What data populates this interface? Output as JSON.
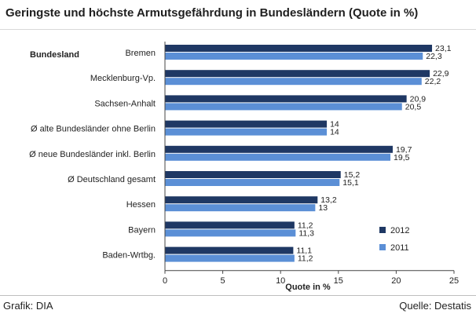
{
  "title": "Geringste und höchste Armutsgefährdung in Bundesländern (Quote in %)",
  "footer": {
    "source_left": "Grafik: DIA",
    "source_right": "Quelle: Destatis"
  },
  "colors": {
    "series_2012": "#1f3864",
    "series_2011": "#5b8fd6"
  },
  "chart_data": {
    "type": "bar",
    "orientation": "horizontal",
    "category_axis_title": "Bundesland",
    "xlabel": "Quote in %",
    "xlim": [
      0,
      25
    ],
    "xticks": [
      0,
      5,
      10,
      15,
      20,
      25
    ],
    "categories": [
      "Bremen",
      "Mecklenburg-Vp.",
      "Sachsen-Anhalt",
      "Ø alte Bundesländer ohne Berlin",
      "Ø neue Bundesländer inkl. Berlin",
      "Ø Deutschland gesamt",
      "Hessen",
      "Bayern",
      "Baden-Wrtbg."
    ],
    "series": [
      {
        "name": "2012",
        "values": [
          23.1,
          22.9,
          20.9,
          14,
          19.7,
          15.2,
          13.2,
          11.2,
          11.1
        ],
        "labels": [
          "23,1",
          "22,9",
          "20,9",
          "14",
          "19,7",
          "15,2",
          "13,2",
          "11,2",
          "11,1"
        ]
      },
      {
        "name": "2011",
        "values": [
          22.3,
          22.2,
          20.5,
          14,
          19.5,
          15.1,
          13,
          11.3,
          11.2
        ],
        "labels": [
          "22,3",
          "22,2",
          "20,5",
          "14",
          "19,5",
          "15,1",
          "13",
          "11,3",
          "11,2"
        ]
      }
    ],
    "legend": [
      "2012",
      "2011"
    ],
    "legend_position": "bottom-right",
    "grid": false
  }
}
